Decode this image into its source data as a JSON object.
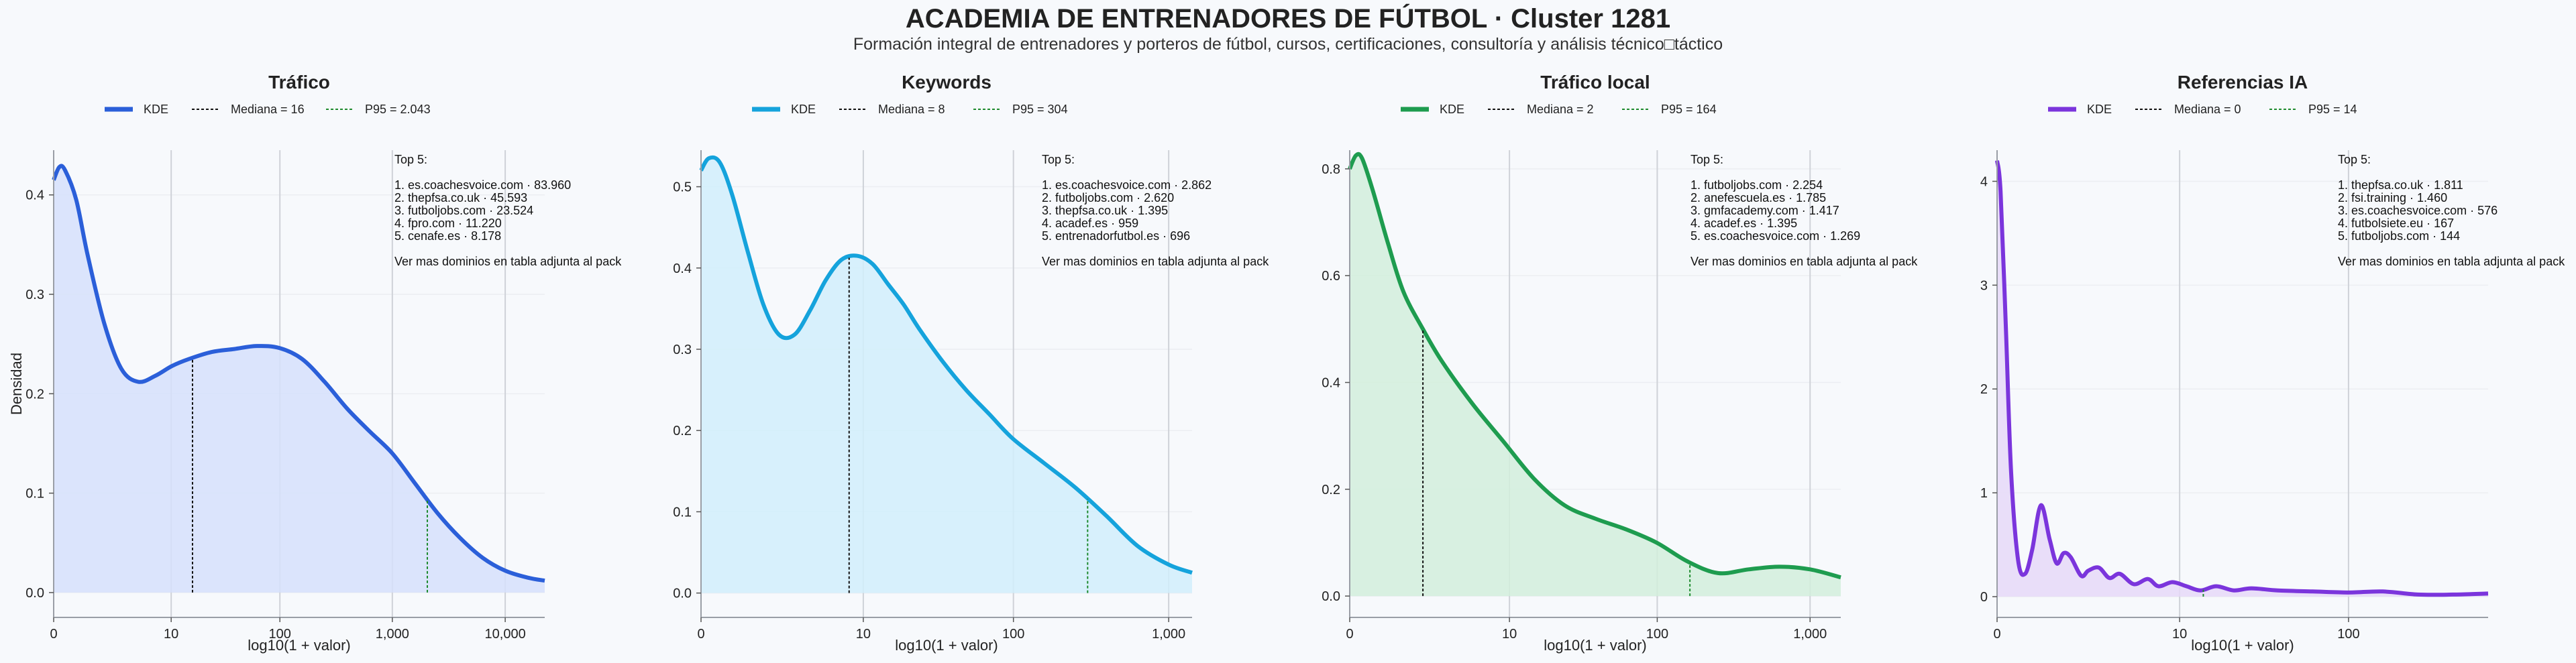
{
  "title": "ACADEMIA DE ENTRENADORES DE FÚTBOL · Cluster 1281",
  "subtitle": "Formación integral de entrenadores y porteros de fútbol, cursos, certificaciones, consultoría y análisis técnico□táctico",
  "shared_y_label": "Densidad",
  "chart_data": [
    {
      "type": "area",
      "title": "Tráfico",
      "xlabel": "log10(1 + valor)",
      "ylabel": "Densidad",
      "color": "#2b5fd9",
      "fill": "#d6e0fb",
      "legend": {
        "kde": "KDE",
        "median": "Mediana = 16",
        "p95": "P95 = 2.043"
      },
      "xlim": [
        0,
        4.35
      ],
      "ylim": [
        -0.025,
        0.445
      ],
      "xticks": [
        {
          "v": 0,
          "label": "0"
        },
        {
          "v": 1.041,
          "label": "10"
        },
        {
          "v": 2.004,
          "label": "100"
        },
        {
          "v": 3.0,
          "label": "1,000"
        },
        {
          "v": 4.0,
          "label": "10,000"
        }
      ],
      "yticks": [
        {
          "v": 0,
          "label": "0.0"
        },
        {
          "v": 0.1,
          "label": "0.1"
        },
        {
          "v": 0.2,
          "label": "0.2"
        },
        {
          "v": 0.3,
          "label": "0.3"
        },
        {
          "v": 0.4,
          "label": "0.4"
        }
      ],
      "median_x": 1.23,
      "p95_x": 3.31,
      "x": [
        0,
        0.05,
        0.1,
        0.2,
        0.3,
        0.45,
        0.6,
        0.75,
        0.9,
        1.05,
        1.2,
        1.4,
        1.6,
        1.8,
        2.0,
        2.2,
        2.4,
        2.6,
        2.8,
        3.0,
        3.2,
        3.4,
        3.6,
        3.8,
        4.0,
        4.2,
        4.35
      ],
      "y": [
        0.415,
        0.428,
        0.425,
        0.395,
        0.34,
        0.27,
        0.225,
        0.212,
        0.218,
        0.228,
        0.235,
        0.242,
        0.245,
        0.248,
        0.246,
        0.235,
        0.212,
        0.185,
        0.162,
        0.14,
        0.11,
        0.08,
        0.055,
        0.035,
        0.022,
        0.015,
        0.012
      ],
      "top5": {
        "header": "Top 5:",
        "items": [
          "1. es.coachesvoice.com · 83.960",
          "2. thepfsa.co.uk · 45.593",
          "3. futboljobs.com · 23.524",
          "4. fpro.com · 11.220",
          "5. cenafe.es · 8.178"
        ],
        "footer": "Ver mas dominios en tabla adjunta al pack"
      }
    },
    {
      "type": "area",
      "title": "Keywords",
      "xlabel": "log10(1 + valor)",
      "ylabel": "",
      "color": "#15a3dc",
      "fill": "#d1effb",
      "legend": {
        "kde": "KDE",
        "median": "Mediana = 8",
        "p95": "P95 = 304"
      },
      "xlim": [
        0,
        3.15
      ],
      "ylim": [
        -0.03,
        0.545
      ],
      "xticks": [
        {
          "v": 0,
          "label": "0"
        },
        {
          "v": 1.041,
          "label": "10"
        },
        {
          "v": 2.004,
          "label": "100"
        },
        {
          "v": 3.0,
          "label": "1,000"
        }
      ],
      "yticks": [
        {
          "v": 0,
          "label": "0.0"
        },
        {
          "v": 0.1,
          "label": "0.1"
        },
        {
          "v": 0.2,
          "label": "0.2"
        },
        {
          "v": 0.3,
          "label": "0.3"
        },
        {
          "v": 0.4,
          "label": "0.4"
        },
        {
          "v": 0.5,
          "label": "0.5"
        }
      ],
      "median_x": 0.95,
      "p95_x": 2.48,
      "x": [
        0,
        0.05,
        0.12,
        0.2,
        0.3,
        0.4,
        0.5,
        0.6,
        0.7,
        0.8,
        0.9,
        1.0,
        1.1,
        1.2,
        1.3,
        1.4,
        1.55,
        1.7,
        1.85,
        2.0,
        2.2,
        2.4,
        2.6,
        2.8,
        3.0,
        3.15
      ],
      "y": [
        0.52,
        0.535,
        0.53,
        0.49,
        0.42,
        0.355,
        0.318,
        0.318,
        0.348,
        0.385,
        0.41,
        0.415,
        0.405,
        0.38,
        0.355,
        0.325,
        0.285,
        0.25,
        0.22,
        0.19,
        0.16,
        0.13,
        0.095,
        0.058,
        0.035,
        0.025
      ],
      "top5": {
        "header": "Top 5:",
        "items": [
          "1. es.coachesvoice.com · 2.862",
          "2. futboljobs.com · 2.620",
          "3. thepfsa.co.uk · 1.395",
          "4. acadef.es · 959",
          "5. entrenadorfutbol.es · 696"
        ],
        "footer": "Ver mas dominios en tabla adjunta al pack"
      }
    },
    {
      "type": "area",
      "title": "Tráfico local",
      "xlabel": "log10(1 + valor)",
      "ylabel": "",
      "color": "#1e9c4f",
      "fill": "#d2eedc",
      "legend": {
        "kde": "KDE",
        "median": "Mediana = 2",
        "p95": "P95 = 164"
      },
      "xlim": [
        0,
        3.2
      ],
      "ylim": [
        -0.04,
        0.835
      ],
      "xticks": [
        {
          "v": 0,
          "label": "0"
        },
        {
          "v": 1.041,
          "label": "10"
        },
        {
          "v": 2.004,
          "label": "100"
        },
        {
          "v": 3.0,
          "label": "1,000"
        }
      ],
      "yticks": [
        {
          "v": 0,
          "label": "0.0"
        },
        {
          "v": 0.2,
          "label": "0.2"
        },
        {
          "v": 0.4,
          "label": "0.4"
        },
        {
          "v": 0.6,
          "label": "0.6"
        },
        {
          "v": 0.8,
          "label": "0.8"
        }
      ],
      "median_x": 0.477,
      "p95_x": 2.217,
      "x": [
        0,
        0.04,
        0.08,
        0.15,
        0.25,
        0.35,
        0.477,
        0.6,
        0.8,
        1.0,
        1.2,
        1.4,
        1.6,
        1.8,
        2.0,
        2.2,
        2.4,
        2.6,
        2.8,
        3.0,
        3.2
      ],
      "y": [
        0.8,
        0.825,
        0.82,
        0.76,
        0.66,
        0.57,
        0.5,
        0.44,
        0.36,
        0.29,
        0.22,
        0.17,
        0.145,
        0.125,
        0.1,
        0.065,
        0.043,
        0.05,
        0.055,
        0.05,
        0.035
      ],
      "top5": {
        "header": "Top 5:",
        "items": [
          "1. futboljobs.com · 2.254",
          "2. anefescuela.es · 1.785",
          "3. gmfacademy.com · 1.417",
          "4. acadef.es · 1.395",
          "5. es.coachesvoice.com · 1.269"
        ],
        "footer": "Ver mas dominios en tabla adjunta al pack"
      }
    },
    {
      "type": "area",
      "title": "Referencias IA",
      "xlabel": "log10(1 + valor)",
      "ylabel": "",
      "color": "#7b35dc",
      "fill": "#e6d9f8",
      "legend": {
        "kde": "KDE",
        "median": "Mediana = 0",
        "p95": "P95 = 14"
      },
      "xlim": [
        0,
        2.8
      ],
      "ylim": [
        -0.2,
        4.3
      ],
      "xticks": [
        {
          "v": 0,
          "label": "0"
        },
        {
          "v": 1.041,
          "label": "10"
        },
        {
          "v": 2.004,
          "label": "100"
        }
      ],
      "yticks": [
        {
          "v": 0,
          "label": "0"
        },
        {
          "v": 1,
          "label": "1"
        },
        {
          "v": 2,
          "label": "2"
        },
        {
          "v": 3,
          "label": "3"
        },
        {
          "v": 4,
          "label": "4"
        }
      ],
      "median_x": 0,
      "p95_x": 1.176,
      "x": [
        0,
        0.02,
        0.05,
        0.08,
        0.12,
        0.16,
        0.2,
        0.25,
        0.3,
        0.34,
        0.38,
        0.42,
        0.48,
        0.52,
        0.58,
        0.64,
        0.7,
        0.78,
        0.86,
        0.92,
        1.0,
        1.08,
        1.16,
        1.25,
        1.35,
        1.45,
        1.6,
        1.8,
        2.0,
        2.2,
        2.4,
        2.6,
        2.8
      ],
      "y": [
        4.2,
        3.9,
        2.6,
        1.2,
        0.35,
        0.22,
        0.45,
        0.88,
        0.55,
        0.32,
        0.42,
        0.38,
        0.2,
        0.25,
        0.28,
        0.18,
        0.22,
        0.12,
        0.17,
        0.1,
        0.14,
        0.1,
        0.06,
        0.1,
        0.06,
        0.08,
        0.06,
        0.05,
        0.04,
        0.05,
        0.02,
        0.02,
        0.03
      ],
      "top5": {
        "header": "Top 5:",
        "items": [
          "1. thepfsa.co.uk · 1.811",
          "2. fsi.training · 1.460",
          "3. es.coachesvoice.com · 576",
          "4. futbolsiete.eu · 167",
          "5. futboljobs.com · 144"
        ],
        "footer": "Ver mas dominios en tabla adjunta al pack"
      }
    }
  ]
}
